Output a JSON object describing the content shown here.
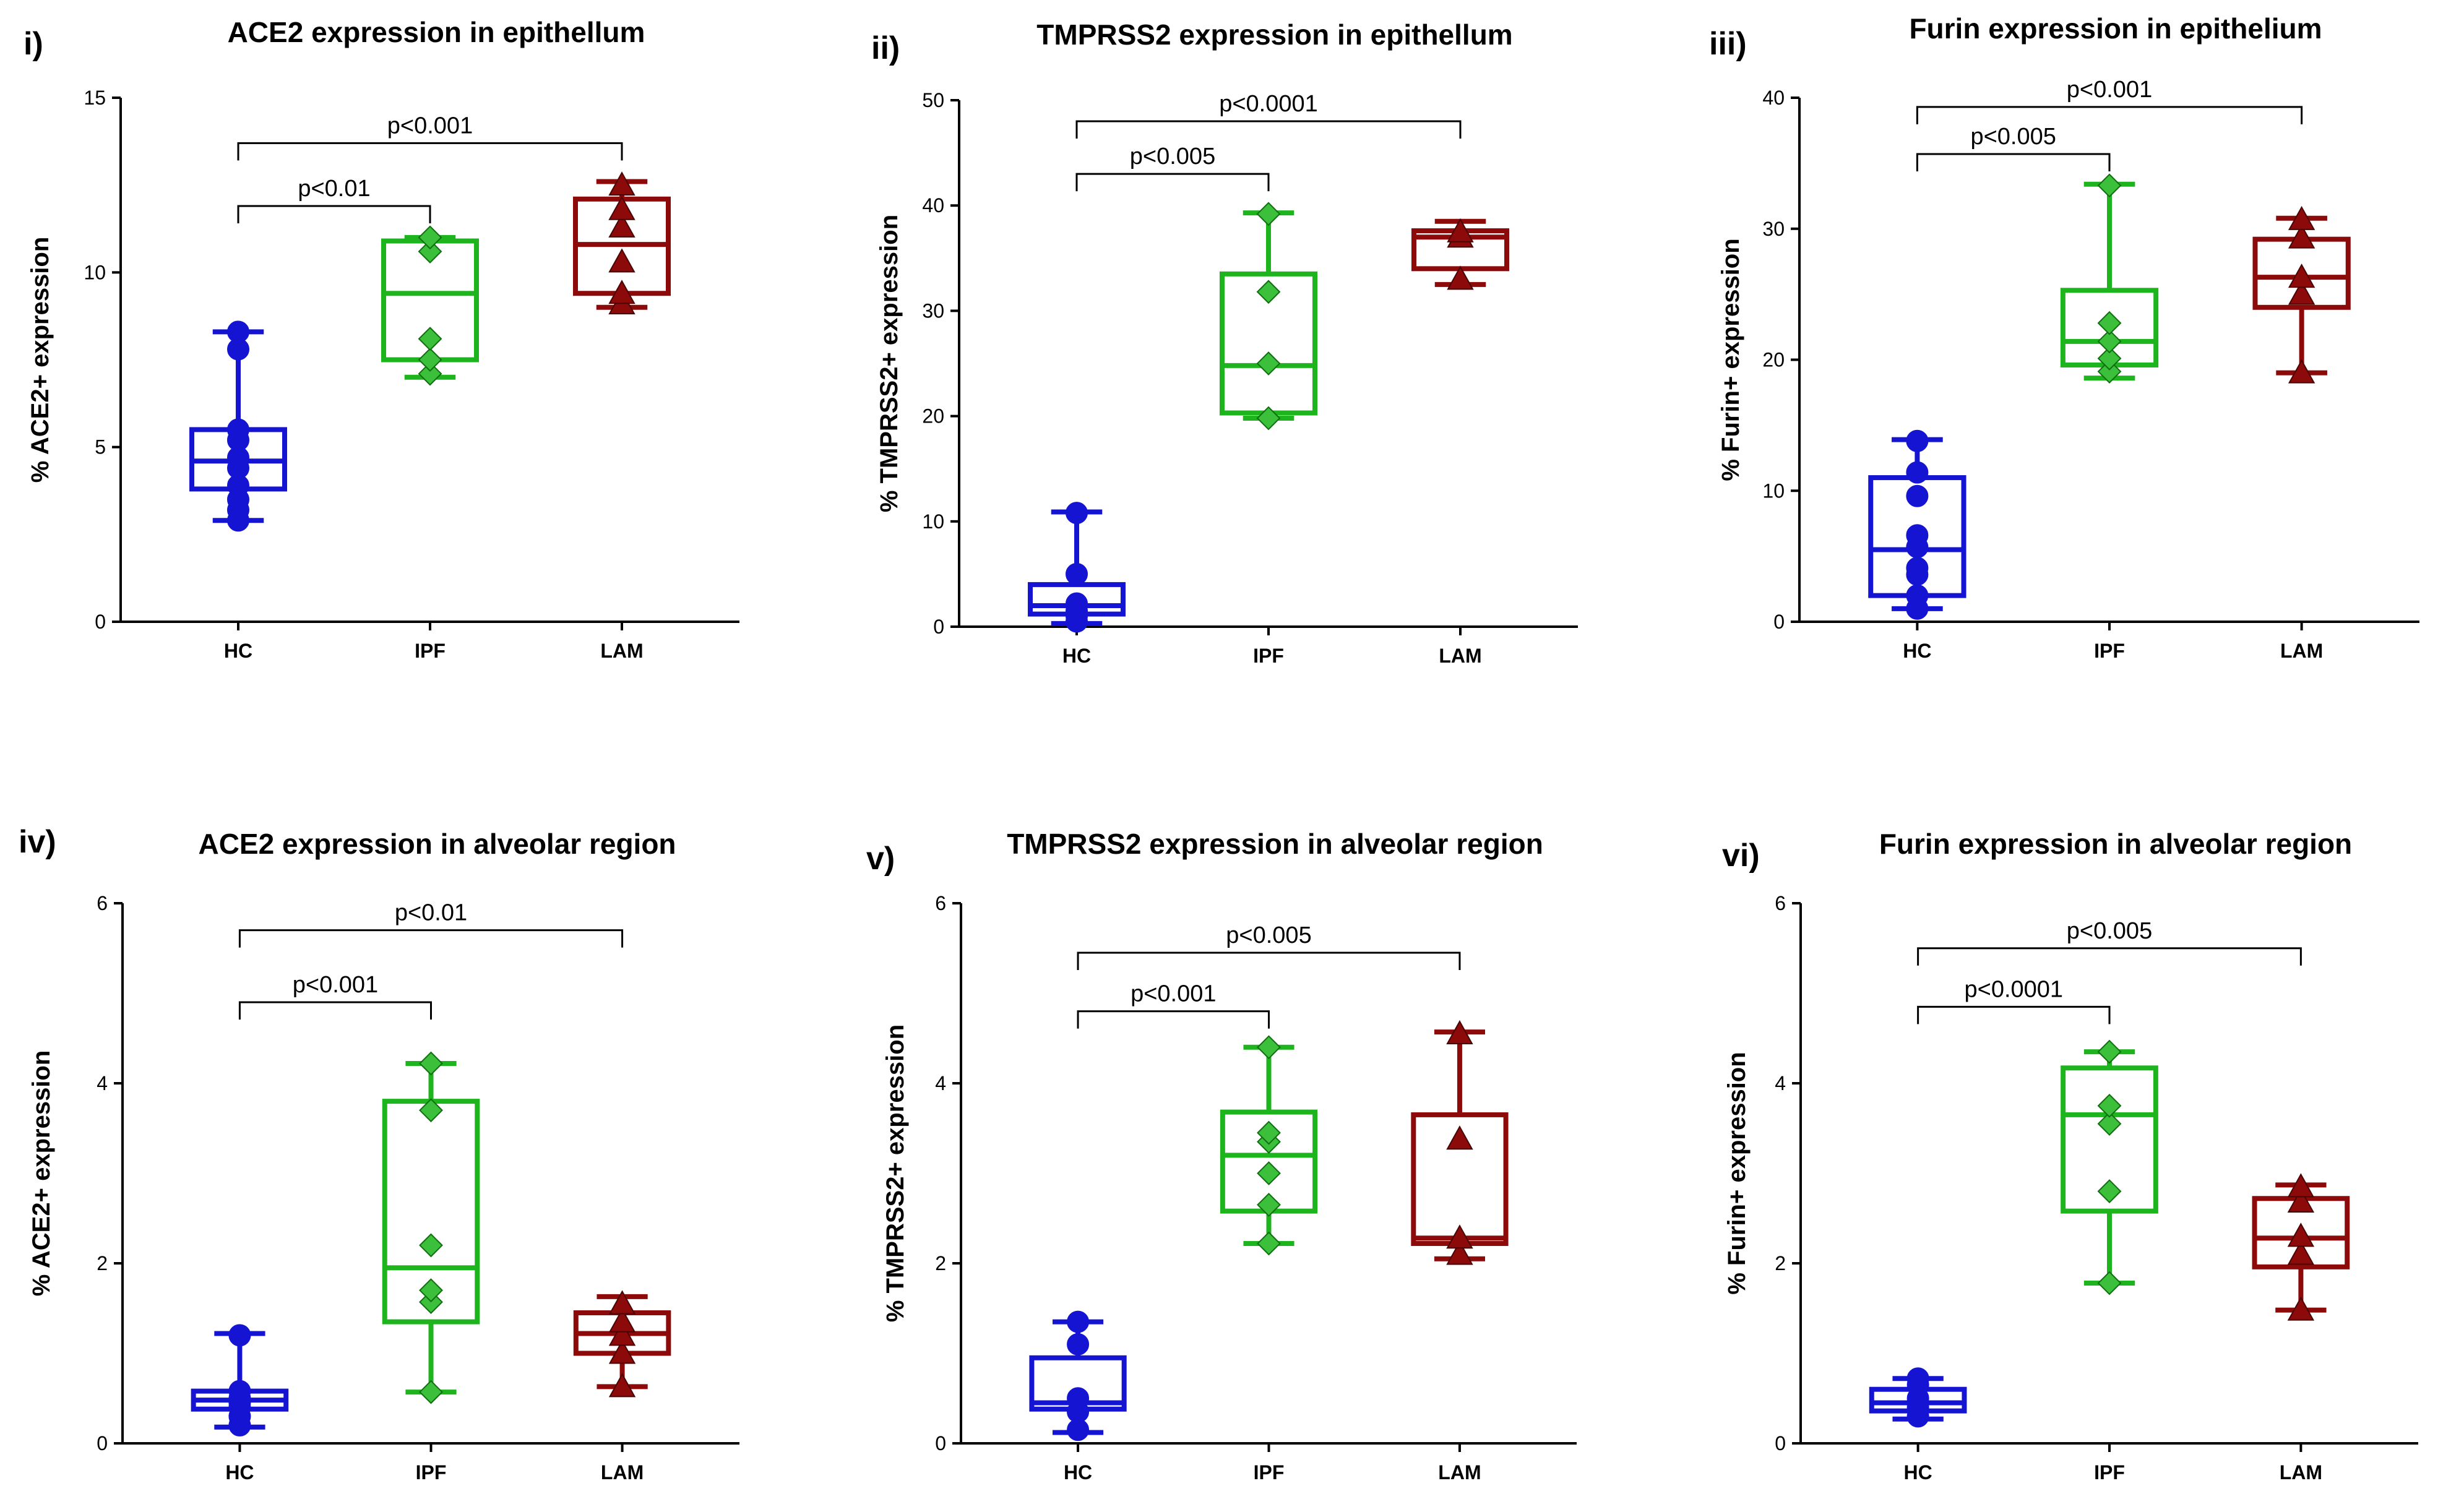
{
  "figure": {
    "colors": {
      "HC": "#1414d2",
      "IPF": "#1eb41e",
      "LAM": "#8c0a0a"
    }
  },
  "chart_data": [
    {
      "type": "box",
      "panel_label": "i)",
      "title": "ACE2 expression in epithellum",
      "xlabel": "",
      "ylabel": "% ACE2+ expression",
      "categories": [
        "HC",
        "IPF",
        "LAM"
      ],
      "ylim": [
        0,
        15
      ],
      "yticks": [
        0,
        5,
        10,
        15
      ],
      "series": [
        {
          "name": "HC",
          "marker": "circle",
          "min": 2.9,
          "q1": 3.8,
          "median": 4.6,
          "q3": 5.5,
          "max": 8.3,
          "points": [
            2.9,
            3.2,
            3.5,
            3.9,
            4.4,
            4.7,
            5.2,
            5.5,
            7.8,
            8.3
          ]
        },
        {
          "name": "IPF",
          "marker": "diamond",
          "min": 7.0,
          "q1": 7.5,
          "median": 9.4,
          "q3": 10.9,
          "max": 11.0,
          "points": [
            7.1,
            7.5,
            8.1,
            10.6,
            11.0
          ]
        },
        {
          "name": "LAM",
          "marker": "triangle",
          "min": 9.0,
          "q1": 9.4,
          "median": 10.8,
          "q3": 12.1,
          "max": 12.6,
          "points": [
            9.1,
            9.4,
            10.3,
            11.3,
            11.8,
            12.5
          ]
        }
      ],
      "comparisons": [
        {
          "from": "HC",
          "to": "IPF",
          "y": 11.9,
          "label": "p<0.01"
        },
        {
          "from": "HC",
          "to": "LAM",
          "y": 13.7,
          "label": "p<0.001"
        }
      ]
    },
    {
      "type": "box",
      "panel_label": "ii)",
      "title": "TMPRSS2 expression in epithellum",
      "xlabel": "",
      "ylabel": "% TMPRSS2+ expression",
      "categories": [
        "HC",
        "IPF",
        "LAM"
      ],
      "ylim": [
        0,
        50
      ],
      "yticks": [
        0,
        10,
        20,
        30,
        40,
        50
      ],
      "series": [
        {
          "name": "HC",
          "marker": "circle",
          "min": 0.3,
          "q1": 1.2,
          "median": 2.0,
          "q3": 4.0,
          "max": 10.9,
          "points": [
            0.5,
            1.0,
            1.5,
            2.2,
            5.0,
            10.8
          ]
        },
        {
          "name": "IPF",
          "marker": "diamond",
          "min": 19.8,
          "q1": 20.3,
          "median": 24.8,
          "q3": 33.5,
          "max": 39.3,
          "points": [
            19.8,
            25.0,
            31.8,
            39.2
          ]
        },
        {
          "name": "LAM",
          "marker": "triangle",
          "min": 32.5,
          "q1": 34.0,
          "median": 37.0,
          "q3": 37.6,
          "max": 38.5,
          "points": [
            33.0,
            37.0,
            37.5
          ]
        }
      ],
      "comparisons": [
        {
          "from": "HC",
          "to": "IPF",
          "y": 43.0,
          "label": "p<0.005"
        },
        {
          "from": "HC",
          "to": "LAM",
          "y": 48.0,
          "label": "p<0.0001"
        }
      ]
    },
    {
      "type": "box",
      "panel_label": "iii)",
      "title": "Furin expression in epithelium",
      "xlabel": "",
      "ylabel": "% Furin+ expression",
      "categories": [
        "HC",
        "IPF",
        "LAM"
      ],
      "ylim": [
        0,
        40
      ],
      "yticks": [
        0,
        10,
        20,
        30,
        40
      ],
      "series": [
        {
          "name": "HC",
          "marker": "circle",
          "min": 1.0,
          "q1": 2.0,
          "median": 5.5,
          "q3": 11.0,
          "max": 13.9,
          "points": [
            1.0,
            2.0,
            3.6,
            4.1,
            5.7,
            6.6,
            9.6,
            11.4,
            13.8
          ]
        },
        {
          "name": "IPF",
          "marker": "diamond",
          "min": 18.6,
          "q1": 19.6,
          "median": 21.4,
          "q3": 25.3,
          "max": 33.4,
          "points": [
            19.1,
            20.1,
            21.4,
            22.8,
            33.3
          ]
        },
        {
          "name": "LAM",
          "marker": "triangle",
          "min": 19.0,
          "q1": 24.0,
          "median": 26.3,
          "q3": 29.2,
          "max": 30.8,
          "points": [
            19.0,
            25.0,
            26.3,
            29.3,
            30.7
          ]
        }
      ],
      "comparisons": [
        {
          "from": "HC",
          "to": "IPF",
          "y": 35.7,
          "label": "p<0.005"
        },
        {
          "from": "HC",
          "to": "LAM",
          "y": 39.3,
          "label": "p<0.001"
        }
      ]
    },
    {
      "type": "box",
      "panel_label": "iv)",
      "title": "ACE2 expression in alveolar region",
      "xlabel": "",
      "ylabel": "% ACE2+ expression",
      "categories": [
        "HC",
        "IPF",
        "LAM"
      ],
      "ylim": [
        0,
        6
      ],
      "yticks": [
        0,
        2,
        4,
        6
      ],
      "series": [
        {
          "name": "HC",
          "marker": "circle",
          "min": 0.18,
          "q1": 0.38,
          "median": 0.48,
          "q3": 0.58,
          "max": 1.22,
          "points": [
            0.2,
            0.3,
            0.4,
            0.45,
            0.5,
            0.58,
            1.2
          ]
        },
        {
          "name": "IPF",
          "marker": "diamond",
          "min": 0.57,
          "q1": 1.35,
          "median": 1.95,
          "q3": 3.8,
          "max": 4.22,
          "points": [
            0.57,
            1.57,
            1.7,
            2.2,
            3.7,
            4.22
          ]
        },
        {
          "name": "LAM",
          "marker": "triangle",
          "min": 0.63,
          "q1": 1.0,
          "median": 1.22,
          "q3": 1.45,
          "max": 1.63,
          "points": [
            0.63,
            1.0,
            1.2,
            1.35,
            1.55
          ]
        }
      ],
      "comparisons": [
        {
          "from": "HC",
          "to": "IPF",
          "y": 4.9,
          "label": "p<0.001"
        },
        {
          "from": "HC",
          "to": "LAM",
          "y": 5.7,
          "label": "p<0.01"
        }
      ]
    },
    {
      "type": "box",
      "panel_label": "v)",
      "title": "TMPRSS2 expression in alveolar region",
      "xlabel": "",
      "ylabel": "% TMPRSS2+ expression",
      "categories": [
        "HC",
        "IPF",
        "LAM"
      ],
      "ylim": [
        0,
        6
      ],
      "yticks": [
        0,
        2,
        4,
        6
      ],
      "series": [
        {
          "name": "HC",
          "marker": "circle",
          "min": 0.12,
          "q1": 0.38,
          "median": 0.45,
          "q3": 0.95,
          "max": 1.35,
          "points": [
            0.15,
            0.35,
            0.5,
            1.1,
            1.35
          ]
        },
        {
          "name": "IPF",
          "marker": "diamond",
          "min": 2.22,
          "q1": 2.58,
          "median": 3.2,
          "q3": 3.68,
          "max": 4.4,
          "points": [
            2.22,
            2.65,
            3.0,
            3.35,
            3.45,
            4.4
          ]
        },
        {
          "name": "LAM",
          "marker": "triangle",
          "min": 2.05,
          "q1": 2.22,
          "median": 2.28,
          "q3": 3.65,
          "max": 4.57,
          "points": [
            2.1,
            2.28,
            3.38,
            4.55
          ]
        }
      ],
      "comparisons": [
        {
          "from": "HC",
          "to": "IPF",
          "y": 4.8,
          "label": "p<0.001"
        },
        {
          "from": "HC",
          "to": "LAM",
          "y": 5.45,
          "label": "p<0.005"
        }
      ]
    },
    {
      "type": "box",
      "panel_label": "vi)",
      "title": "Furin expression in alveolar region",
      "xlabel": "",
      "ylabel": "% Furin+ expression",
      "categories": [
        "HC",
        "IPF",
        "LAM"
      ],
      "ylim": [
        0,
        6
      ],
      "yticks": [
        0,
        2,
        4,
        6
      ],
      "series": [
        {
          "name": "HC",
          "marker": "circle",
          "min": 0.27,
          "q1": 0.36,
          "median": 0.45,
          "q3": 0.6,
          "max": 0.72,
          "points": [
            0.3,
            0.4,
            0.5,
            0.65,
            0.72
          ]
        },
        {
          "name": "IPF",
          "marker": "diamond",
          "min": 1.78,
          "q1": 2.58,
          "median": 3.65,
          "q3": 4.17,
          "max": 4.35,
          "points": [
            1.78,
            2.8,
            3.55,
            3.75,
            4.35
          ]
        },
        {
          "name": "LAM",
          "marker": "triangle",
          "min": 1.48,
          "q1": 1.96,
          "median": 2.28,
          "q3": 2.72,
          "max": 2.87,
          "points": [
            1.48,
            2.1,
            2.3,
            2.68,
            2.85
          ]
        }
      ],
      "comparisons": [
        {
          "from": "HC",
          "to": "IPF",
          "y": 4.85,
          "label": "p<0.0001"
        },
        {
          "from": "HC",
          "to": "LAM",
          "y": 5.5,
          "label": "p<0.005"
        }
      ]
    }
  ]
}
